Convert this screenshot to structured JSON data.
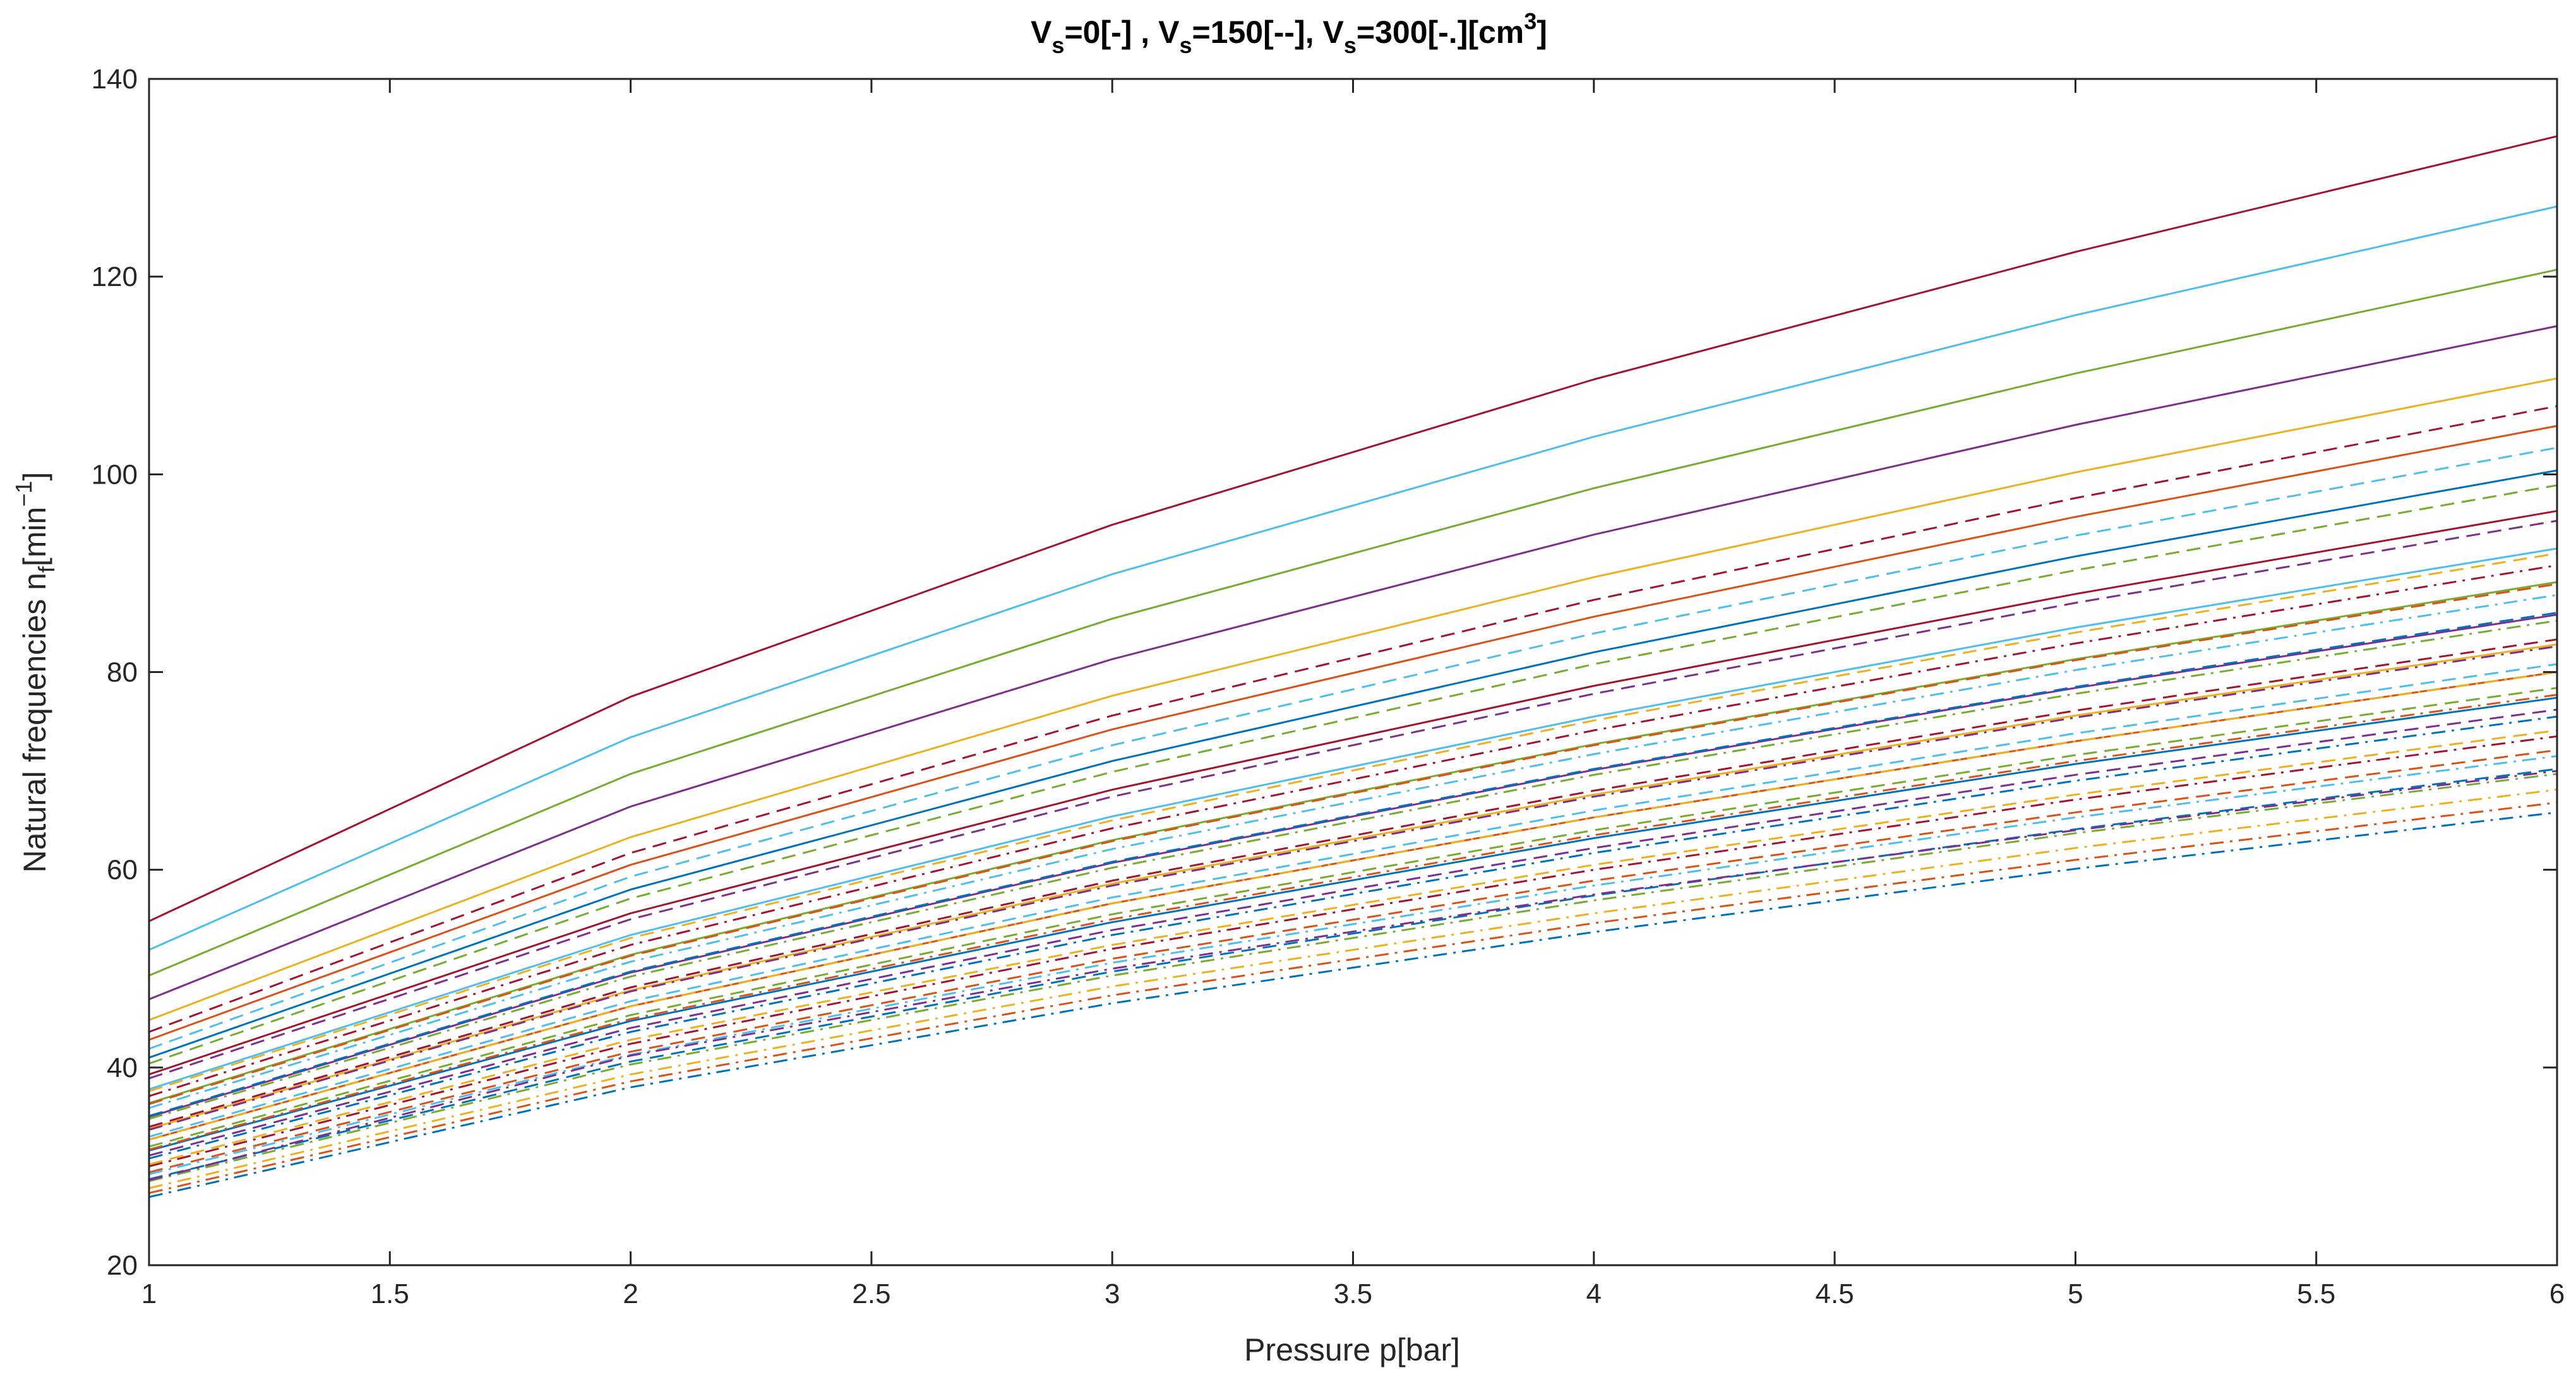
{
  "chart_data": {
    "type": "line",
    "title_parts": {
      "v1": "V",
      "s1": "s",
      "t1": "=0[-] , ",
      "v2": "V",
      "s2": "s",
      "t2": "=150[--], ",
      "v3": "V",
      "s3": "s",
      "t3": "=300[-.][cm",
      "sup": "3",
      "end": "]"
    },
    "xlabel": "Pressure p[bar]",
    "ylabel_parts": {
      "main": "Natural frequencies n",
      "sub": "f",
      "bracket": "[min",
      "sup": "−1",
      "end": "]"
    },
    "xlim": [
      1,
      6
    ],
    "ylim": [
      20,
      140
    ],
    "xticks": [
      1,
      1.5,
      2,
      2.5,
      3,
      3.5,
      4,
      4.5,
      5,
      5.5,
      6
    ],
    "yticks": [
      20,
      40,
      60,
      80,
      100,
      120,
      140
    ],
    "xtick_labels": [
      "1",
      "1.5",
      "2",
      "2.5",
      "3",
      "3.5",
      "4",
      "4.5",
      "5",
      "5.5",
      "6"
    ],
    "ytick_labels": [
      "20",
      "40",
      "60",
      "80",
      "100",
      "120",
      "140"
    ],
    "grid": false,
    "x": [
      1,
      2,
      3,
      4,
      5,
      6
    ],
    "series": [
      {
        "style": "solid",
        "color": "#A2142F",
        "values": [
          54.8,
          77.5,
          94.9,
          109.6,
          122.5,
          134.2
        ]
      },
      {
        "style": "solid",
        "color": "#4DBEEE",
        "values": [
          51.9,
          73.4,
          89.9,
          103.8,
          116.1,
          127.1
        ]
      },
      {
        "style": "solid",
        "color": "#77AC30",
        "values": [
          49.3,
          69.7,
          85.4,
          98.6,
          110.2,
          120.7
        ]
      },
      {
        "style": "solid",
        "color": "#7E2F8E",
        "values": [
          46.9,
          66.4,
          81.3,
          93.9,
          105.0,
          115.0
        ]
      },
      {
        "style": "solid",
        "color": "#EDB120",
        "values": [
          44.8,
          63.3,
          77.6,
          89.6,
          100.2,
          109.7
        ]
      },
      {
        "style": "solid",
        "color": "#D95319",
        "values": [
          42.8,
          60.5,
          74.2,
          85.6,
          95.7,
          104.9
        ]
      },
      {
        "style": "solid",
        "color": "#0072BD",
        "values": [
          41.0,
          58.0,
          71.0,
          82.0,
          91.7,
          100.4
        ]
      },
      {
        "style": "solid",
        "color": "#A2142F",
        "values": [
          39.3,
          55.6,
          68.1,
          78.6,
          87.9,
          96.3
        ]
      },
      {
        "style": "solid",
        "color": "#4DBEEE",
        "values": [
          37.8,
          53.4,
          65.4,
          75.5,
          84.5,
          92.5
        ]
      },
      {
        "style": "solid",
        "color": "#77AC30",
        "values": [
          36.4,
          51.4,
          63.0,
          72.7,
          81.3,
          89.1
        ]
      },
      {
        "style": "solid",
        "color": "#7E2F8E",
        "values": [
          35.0,
          49.6,
          60.7,
          70.1,
          78.4,
          85.8
        ]
      },
      {
        "style": "solid",
        "color": "#EDB120",
        "values": [
          33.8,
          47.8,
          58.6,
          67.6,
          75.6,
          82.8
        ]
      },
      {
        "style": "solid",
        "color": "#D95319",
        "values": [
          32.7,
          46.2,
          56.6,
          65.3,
          73.0,
          80.0
        ]
      },
      {
        "style": "solid",
        "color": "#0072BD",
        "values": [
          31.6,
          44.7,
          54.7,
          63.2,
          70.7,
          77.4
        ]
      },
      {
        "style": "dashed",
        "color": "#A2142F",
        "values": [
          43.6,
          61.7,
          75.6,
          87.3,
          97.6,
          106.9
        ]
      },
      {
        "style": "dashed",
        "color": "#4DBEEE",
        "values": [
          41.9,
          59.3,
          72.6,
          83.9,
          93.8,
          102.7
        ]
      },
      {
        "style": "dashed",
        "color": "#77AC30",
        "values": [
          40.4,
          57.1,
          69.9,
          80.8,
          90.3,
          98.9
        ]
      },
      {
        "style": "dashed",
        "color": "#7E2F8E",
        "values": [
          38.9,
          55.0,
          67.4,
          77.8,
          87.0,
          95.3
        ]
      },
      {
        "style": "dashed",
        "color": "#EDB120",
        "values": [
          37.6,
          53.1,
          65.0,
          75.1,
          84.0,
          92.0
        ]
      },
      {
        "style": "dashed",
        "color": "#D95319",
        "values": [
          36.3,
          51.3,
          62.9,
          72.6,
          81.2,
          88.9
        ]
      },
      {
        "style": "dashed",
        "color": "#0072BD",
        "values": [
          35.1,
          49.7,
          60.8,
          70.2,
          78.5,
          86.0
        ]
      },
      {
        "style": "dashed",
        "color": "#A2142F",
        "values": [
          34.0,
          48.1,
          58.9,
          68.0,
          76.1,
          83.3
        ]
      },
      {
        "style": "dashed",
        "color": "#4DBEEE",
        "values": [
          33.0,
          46.7,
          57.2,
          66.0,
          73.8,
          80.8
        ]
      },
      {
        "style": "dashed",
        "color": "#77AC30",
        "values": [
          32.0,
          45.3,
          55.5,
          64.0,
          71.6,
          78.4
        ]
      },
      {
        "style": "dashed",
        "color": "#7E2F8E",
        "values": [
          31.1,
          44.0,
          53.9,
          62.2,
          69.6,
          76.2
        ]
      },
      {
        "style": "dashed",
        "color": "#EDB120",
        "values": [
          30.2,
          42.8,
          52.4,
          60.5,
          67.6,
          74.1
        ]
      },
      {
        "style": "dashed",
        "color": "#D95319",
        "values": [
          29.4,
          41.6,
          51.0,
          58.9,
          65.8,
          72.1
        ]
      },
      {
        "style": "dashed",
        "color": "#0072BD",
        "values": [
          28.7,
          40.6,
          49.7,
          57.4,
          64.1,
          70.2
        ]
      },
      {
        "style": "dashdot",
        "color": "#A2142F",
        "values": [
          37.1,
          52.4,
          64.2,
          74.1,
          82.9,
          90.8
        ]
      },
      {
        "style": "dashdot",
        "color": "#4DBEEE",
        "values": [
          35.9,
          50.7,
          62.1,
          71.7,
          80.2,
          87.8
        ]
      },
      {
        "style": "dashdot",
        "color": "#77AC30",
        "values": [
          34.8,
          49.2,
          60.2,
          69.6,
          77.8,
          85.2
        ]
      },
      {
        "style": "dashdot",
        "color": "#7E2F8E",
        "values": [
          33.7,
          47.7,
          58.4,
          67.4,
          75.4,
          82.6
        ]
      },
      {
        "style": "dashdot",
        "color": "#EDB120",
        "values": [
          32.7,
          46.2,
          56.6,
          65.3,
          73.0,
          80.0
        ]
      },
      {
        "style": "dashdot",
        "color": "#D95319",
        "values": [
          31.7,
          44.9,
          55.0,
          63.5,
          71.0,
          77.7
        ]
      },
      {
        "style": "dashdot",
        "color": "#0072BD",
        "values": [
          30.8,
          43.6,
          53.4,
          61.7,
          69.0,
          75.5
        ]
      },
      {
        "style": "dashdot",
        "color": "#A2142F",
        "values": [
          30.0,
          42.4,
          52.0,
          60.0,
          67.1,
          73.5
        ]
      },
      {
        "style": "dashdot",
        "color": "#4DBEEE",
        "values": [
          29.2,
          41.3,
          50.6,
          58.4,
          65.3,
          71.5
        ]
      },
      {
        "style": "dashdot",
        "color": "#77AC30",
        "values": [
          28.5,
          40.3,
          49.3,
          56.9,
          63.7,
          69.7
        ]
      },
      {
        "style": "dashdot",
        "color": "#7E2F8E",
        "values": [
          28.6,
          41.2,
          50.0,
          57.5,
          64.0,
          70.0
        ]
      },
      {
        "style": "dashdot",
        "color": "#EDB120",
        "values": [
          27.8,
          39.3,
          48.2,
          55.6,
          62.2,
          68.1
        ]
      },
      {
        "style": "dashdot",
        "color": "#D95319",
        "values": [
          27.3,
          38.6,
          47.3,
          54.6,
          61.0,
          66.8
        ]
      },
      {
        "style": "dashdot",
        "color": "#0072BD",
        "values": [
          26.9,
          38.0,
          46.5,
          53.7,
          60.1,
          65.8
        ]
      }
    ]
  }
}
